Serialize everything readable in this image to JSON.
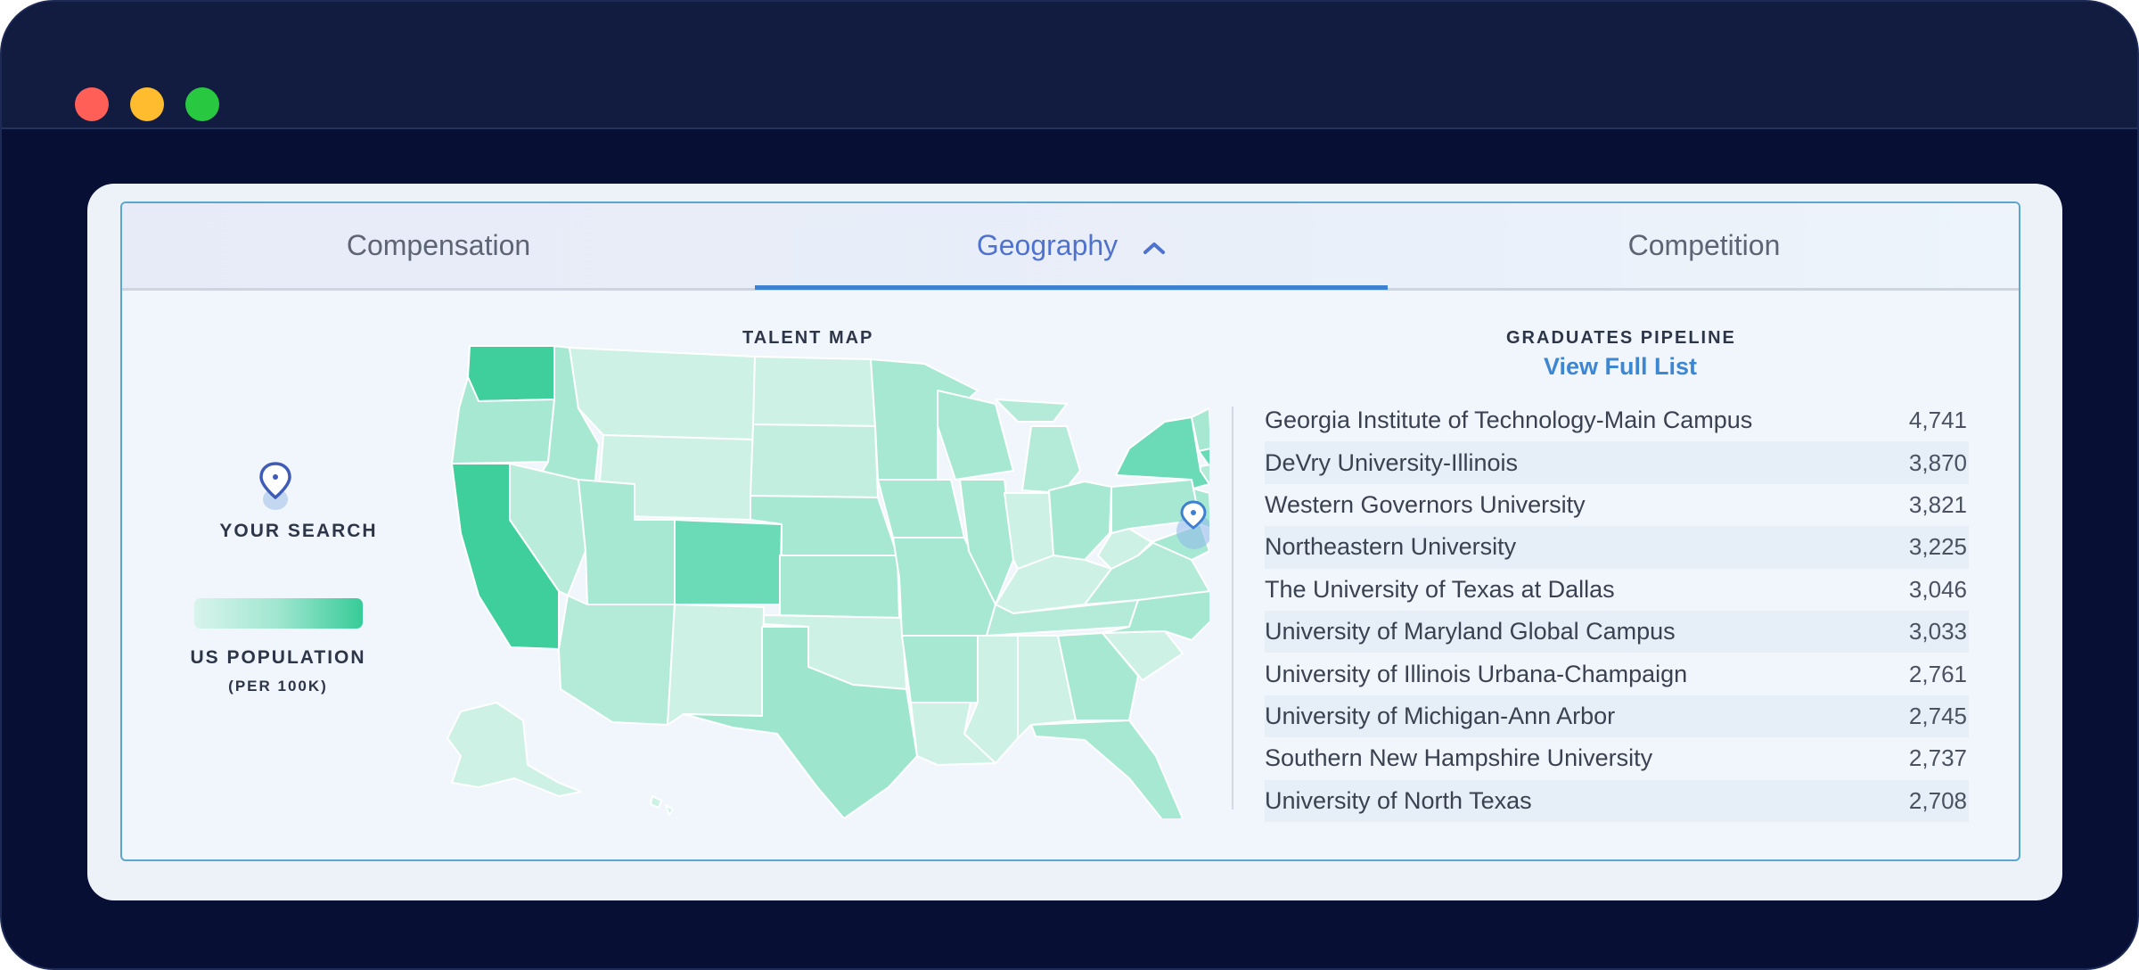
{
  "tabs": [
    {
      "label": "Compensation"
    },
    {
      "label": "Geography"
    },
    {
      "label": "Competition"
    }
  ],
  "talent_map": {
    "title": "TALENT MAP",
    "legend": {
      "your_search": "YOUR SEARCH",
      "population_label": "US POPULATION",
      "population_unit": "(PER 100K)"
    }
  },
  "graduates": {
    "title": "GRADUATES PIPELINE",
    "view_link": "View Full List",
    "rows": [
      {
        "name": "Georgia Institute of Technology-Main Campus",
        "count": "4,741"
      },
      {
        "name": "DeVry University-Illinois",
        "count": "3,870"
      },
      {
        "name": "Western Governors University",
        "count": "3,821"
      },
      {
        "name": "Northeastern University",
        "count": "3,225"
      },
      {
        "name": "The University of Texas at Dallas",
        "count": "3,046"
      },
      {
        "name": "University of Maryland Global Campus",
        "count": "3,033"
      },
      {
        "name": "University of Illinois Urbana-Champaign",
        "count": "2,761"
      },
      {
        "name": "University of Michigan-Ann Arbor",
        "count": "2,745"
      },
      {
        "name": "Southern New Hampshire University",
        "count": "2,737"
      },
      {
        "name": "University of North Texas",
        "count": "2,708"
      }
    ]
  },
  "colors": {
    "accent": "#3c82d0",
    "map_low": "#d8f4ec",
    "map_high": "#37cb98"
  }
}
